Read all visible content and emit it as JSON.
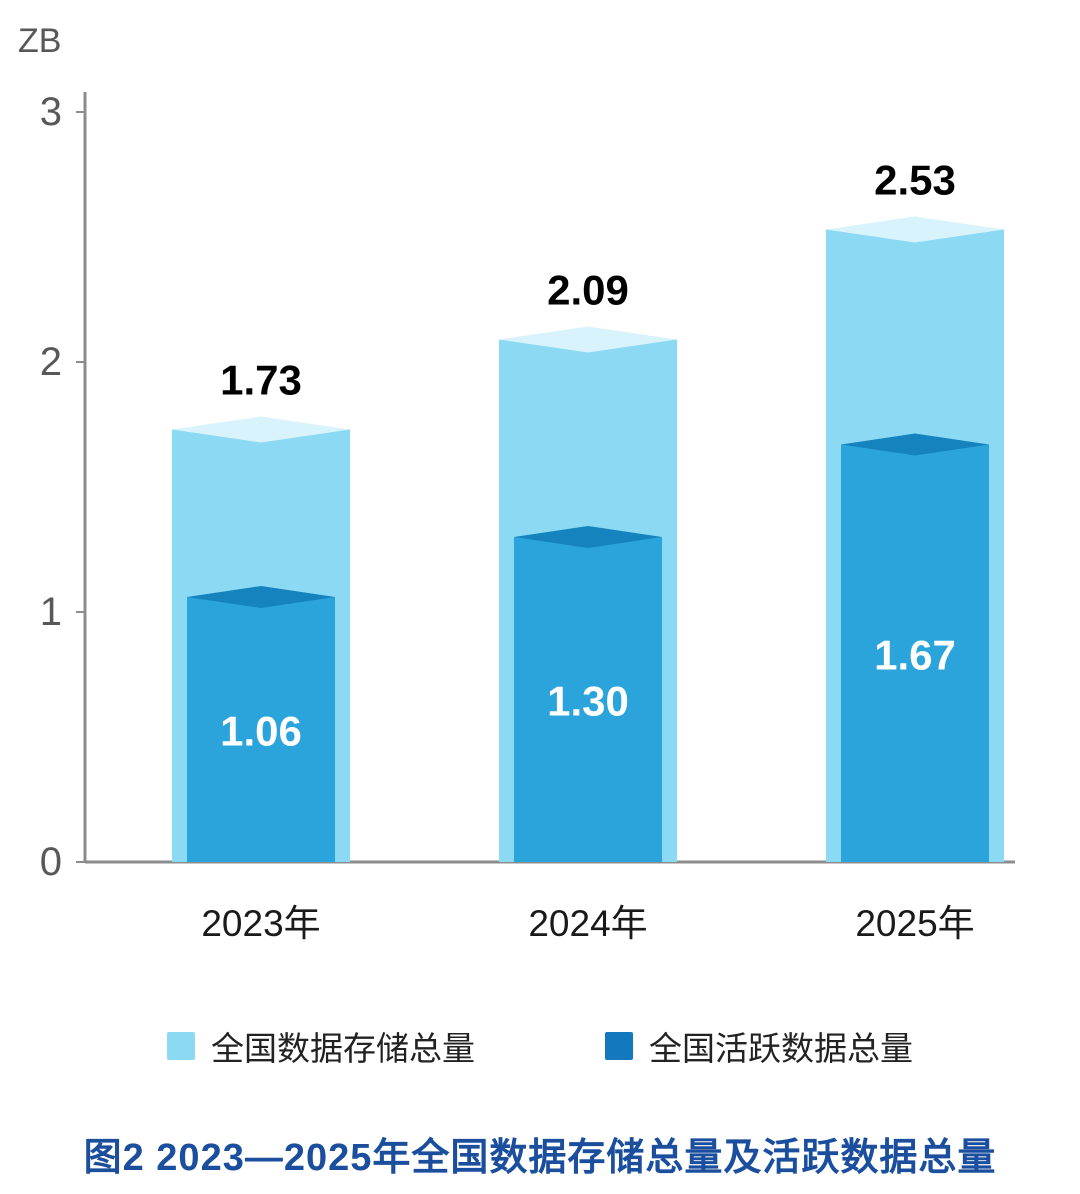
{
  "chart_data": {
    "type": "bar",
    "title": "图2 2023—2025年全国数据存储总量及活跃数据总量",
    "unit": "ZB",
    "categories": [
      "2023年",
      "2024年",
      "2025年"
    ],
    "series": [
      {
        "name": "全国数据存储总量",
        "values": [
          1.73,
          2.09,
          2.53
        ],
        "labels": [
          "1.73",
          "2.09",
          "2.53"
        ],
        "bar_color": "#8BD9F3",
        "top_color": "#D9F3FC",
        "label_style": "above-black"
      },
      {
        "name": "全国活跃数据总量",
        "values": [
          1.06,
          1.3,
          1.67
        ],
        "labels": [
          "1.06",
          "1.30",
          "1.67"
        ],
        "bar_color": "#2BA4DC",
        "top_color": "#1583BE",
        "label_style": "inside-white"
      }
    ],
    "ylim": [
      0,
      3
    ],
    "y_ticks": [
      0,
      1,
      2,
      3
    ],
    "grid": false,
    "legend_position": "bottom",
    "xlabel": "",
    "ylabel": "ZB"
  },
  "axis": {
    "unit_label": "ZB",
    "tick_labels": [
      "0",
      "1",
      "2",
      "3"
    ],
    "tick_color": "#595757",
    "line_color": "#8C8C8C",
    "category_color": "#1A1A1A"
  },
  "legend": {
    "items": [
      {
        "label": "全国数据存储总量",
        "color": "#8BD9F3"
      },
      {
        "label": "全国活跃数据总量",
        "color": "#1478BE"
      }
    ]
  },
  "title": {
    "text": "图2 2023—2025年全国数据存储总量及活跃数据总量",
    "color": "#1B4F9E"
  }
}
